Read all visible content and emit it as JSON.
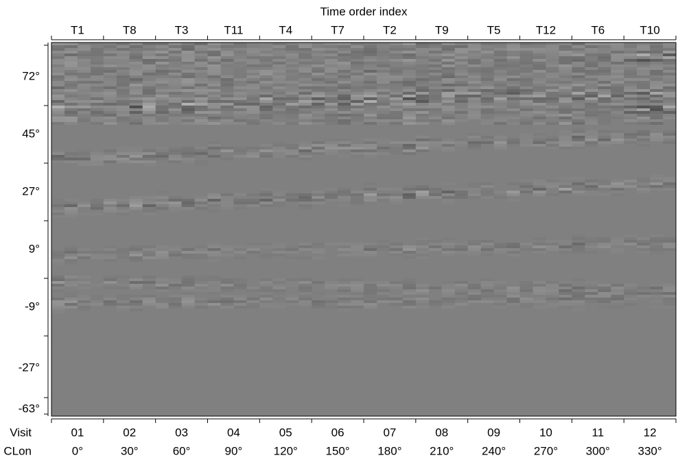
{
  "chart_data": {
    "type": "heatmap",
    "x2_label": "Time order index",
    "top_labels": [
      "T1",
      "T8",
      "T3",
      "T11",
      "T4",
      "T7",
      "T2",
      "T9",
      "T5",
      "T12",
      "T6",
      "T10"
    ],
    "row_labels": [
      "Visit",
      "CLon"
    ],
    "visit_labels": [
      "01",
      "02",
      "03",
      "04",
      "05",
      "06",
      "07",
      "08",
      "09",
      "10",
      "11",
      "12"
    ],
    "clon_labels": [
      "0°",
      "30°",
      "60°",
      "90°",
      "120°",
      "150°",
      "180°",
      "210°",
      "240°",
      "270°",
      "300°",
      "330°"
    ],
    "y_labels": [
      "72°",
      "45°",
      "27°",
      "9°",
      "-9°",
      "-27°",
      "-63°"
    ]
  }
}
